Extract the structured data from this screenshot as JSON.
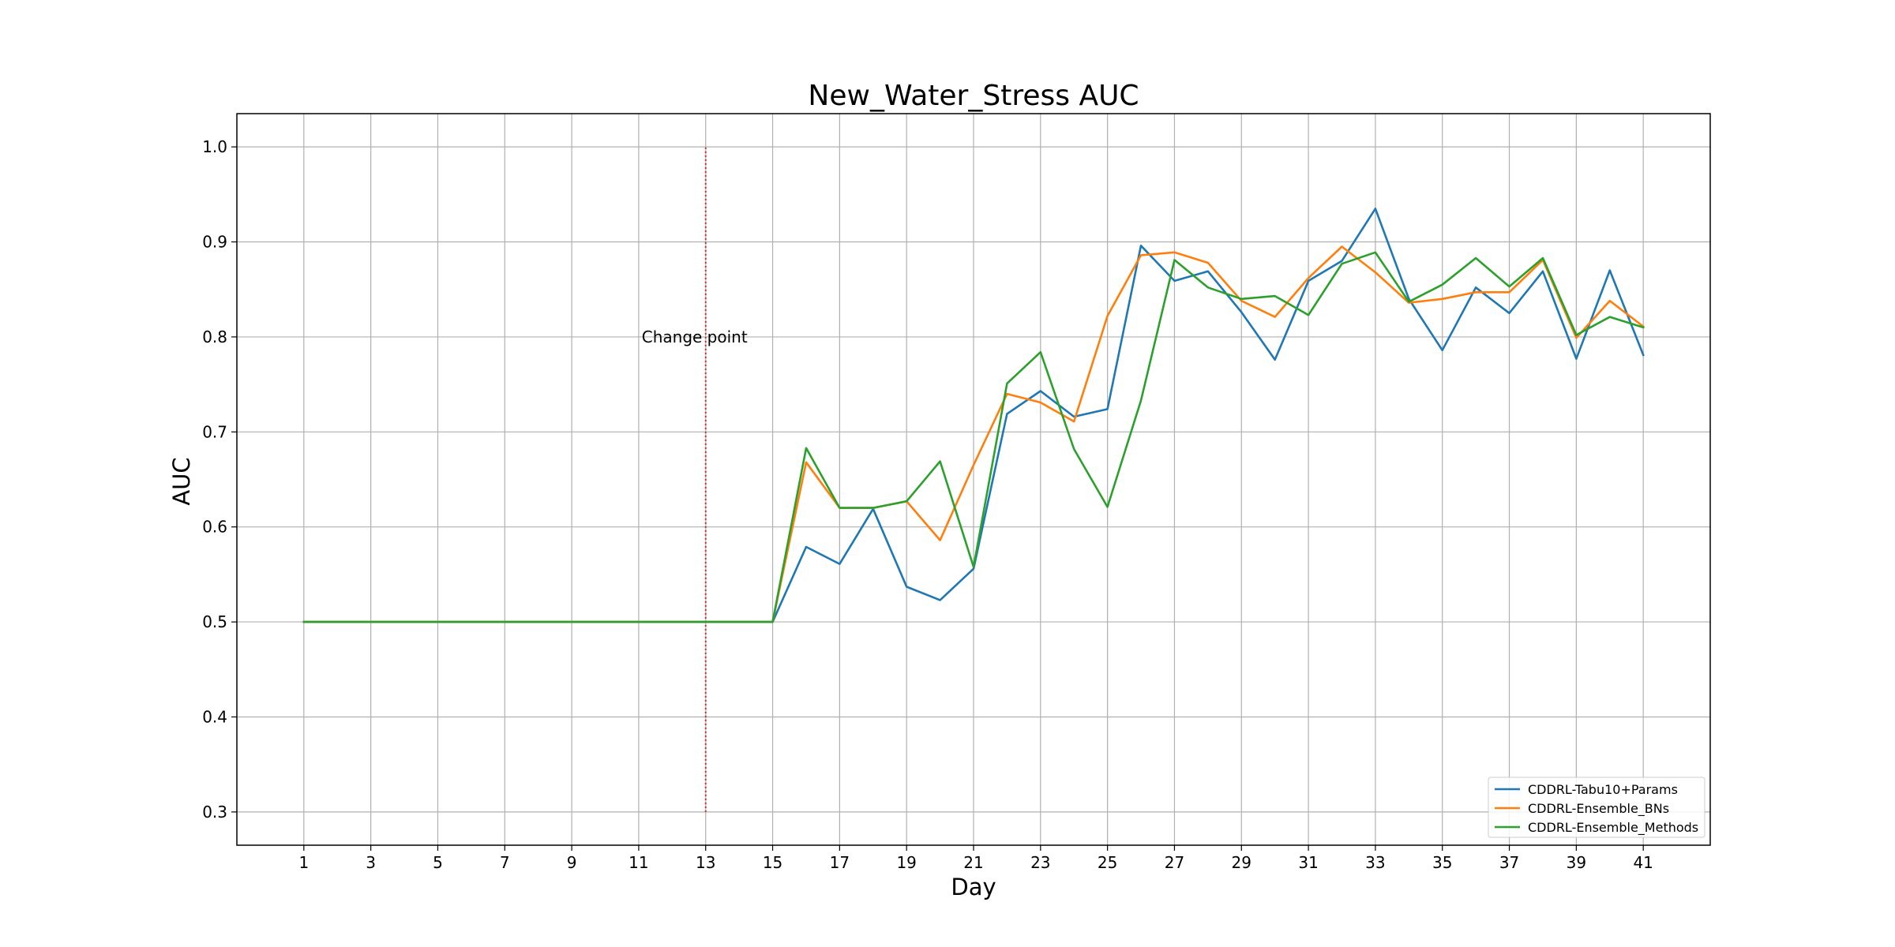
{
  "chart_data": {
    "type": "line",
    "title": "New_Water_Stress AUC",
    "xlabel": "Day",
    "ylabel": "AUC",
    "xlim": [
      -1,
      43
    ],
    "ylim": [
      0.265,
      1.035
    ],
    "grid": true,
    "legend_position": "bottom-right",
    "x_ticks": [
      1,
      3,
      5,
      7,
      9,
      11,
      13,
      15,
      17,
      19,
      21,
      23,
      25,
      27,
      29,
      31,
      33,
      35,
      37,
      39,
      41
    ],
    "y_ticks": [
      0.3,
      0.4,
      0.5,
      0.6,
      0.7,
      0.8,
      0.9,
      1.0
    ],
    "x": [
      1,
      2,
      3,
      4,
      5,
      6,
      7,
      8,
      9,
      10,
      11,
      12,
      13,
      14,
      15,
      16,
      17,
      18,
      19,
      20,
      21,
      22,
      23,
      24,
      25,
      26,
      27,
      28,
      29,
      30,
      31,
      32,
      33,
      34,
      35,
      36,
      37,
      38,
      39,
      40,
      41
    ],
    "series": [
      {
        "name": "CDDRL-Tabu10+Params",
        "color": "#1f77b4",
        "values": [
          0.5,
          0.5,
          0.5,
          0.5,
          0.5,
          0.5,
          0.5,
          0.5,
          0.5,
          0.5,
          0.5,
          0.5,
          0.5,
          0.5,
          0.5,
          0.579,
          0.561,
          0.619,
          0.537,
          0.523,
          0.556,
          0.719,
          0.743,
          0.716,
          0.724,
          0.896,
          0.859,
          0.869,
          0.826,
          0.776,
          0.859,
          0.88,
          0.935,
          0.84,
          0.786,
          0.852,
          0.825,
          0.869,
          0.777,
          0.87,
          0.781
        ]
      },
      {
        "name": "CDDRL-Ensemble_BNs",
        "color": "#ff7f0e",
        "values": [
          0.5,
          0.5,
          0.5,
          0.5,
          0.5,
          0.5,
          0.5,
          0.5,
          0.5,
          0.5,
          0.5,
          0.5,
          0.5,
          0.5,
          0.5,
          0.668,
          0.62,
          0.62,
          0.627,
          0.586,
          0.665,
          0.74,
          0.731,
          0.711,
          0.822,
          0.886,
          0.889,
          0.878,
          0.838,
          0.821,
          0.862,
          0.895,
          0.868,
          0.836,
          0.84,
          0.847,
          0.847,
          0.881,
          0.799,
          0.838,
          0.811
        ]
      },
      {
        "name": "CDDRL-Ensemble_Methods",
        "color": "#2ca02c",
        "values": [
          0.5,
          0.5,
          0.5,
          0.5,
          0.5,
          0.5,
          0.5,
          0.5,
          0.5,
          0.5,
          0.5,
          0.5,
          0.5,
          0.5,
          0.5,
          0.683,
          0.62,
          0.62,
          0.627,
          0.669,
          0.558,
          0.751,
          0.784,
          0.682,
          0.621,
          0.733,
          0.881,
          0.852,
          0.84,
          0.843,
          0.823,
          0.877,
          0.889,
          0.837,
          0.855,
          0.883,
          0.853,
          0.883,
          0.802,
          0.821,
          0.81
        ]
      }
    ],
    "annotation": {
      "text": "Change point",
      "x": 13,
      "y": 0.8,
      "line_x": 13,
      "line_y_range": [
        0.3,
        1.0
      ],
      "line_color": "#d62728"
    }
  }
}
